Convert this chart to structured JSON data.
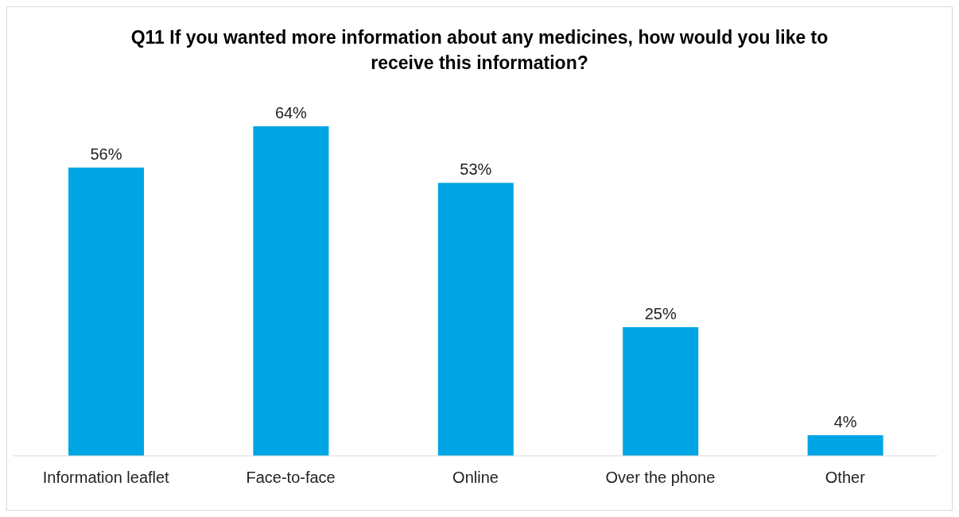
{
  "chart_data": {
    "type": "bar",
    "title": "Q11 If you wanted more information about any medicines, how would you like to receive this information?",
    "categories": [
      "Information leaflet",
      "Face-to-face",
      "Online",
      "Over the phone",
      "Other"
    ],
    "values": [
      56,
      64,
      53,
      25,
      4
    ],
    "value_labels": [
      "56%",
      "64%",
      "53%",
      "25%",
      "4%"
    ],
    "color": "#00a5e3",
    "grid": false,
    "legend": false
  }
}
